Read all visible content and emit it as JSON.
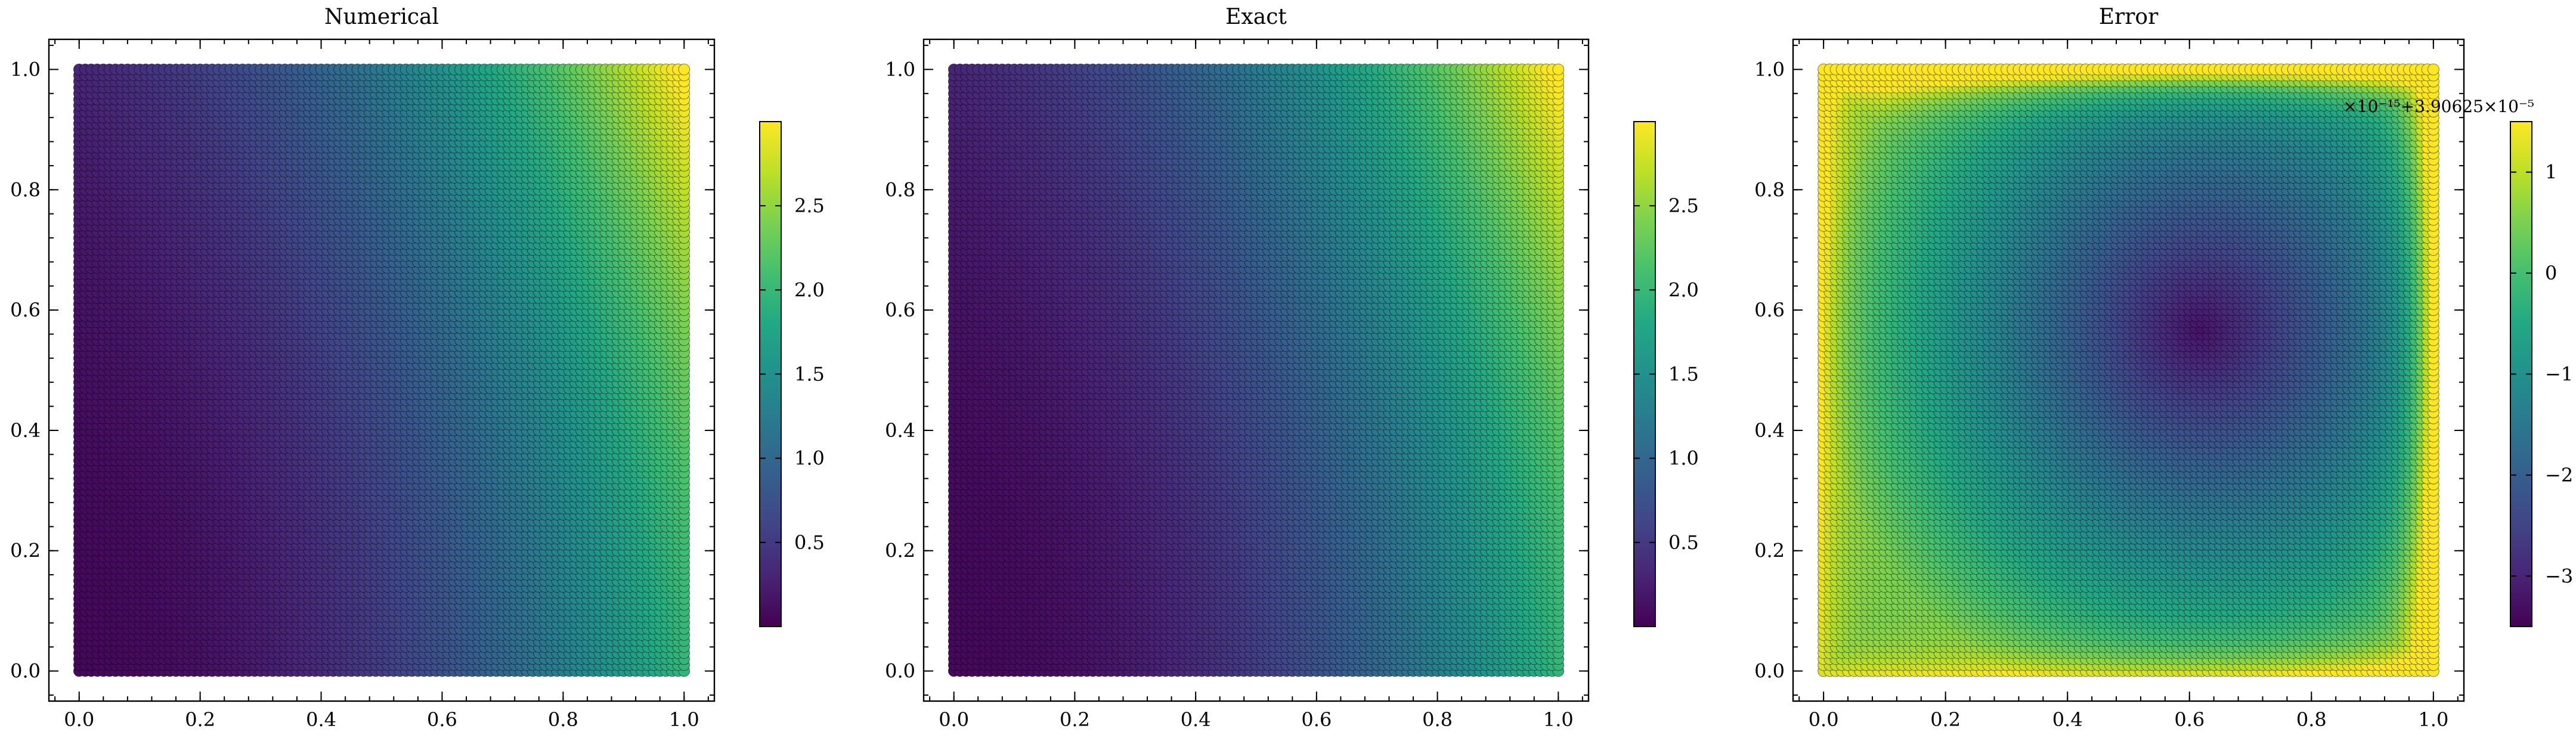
{
  "chart_data": [
    {
      "type": "scatter",
      "title": "Numerical",
      "xlim": [
        -0.05,
        1.05
      ],
      "ylim": [
        -0.05,
        1.05
      ],
      "x_ticks": [
        "0.0",
        "0.2",
        "0.4",
        "0.6",
        "0.8",
        "1.0"
      ],
      "y_ticks": [
        "0.0",
        "0.2",
        "0.4",
        "0.6",
        "0.8",
        "1.0"
      ],
      "grid_points": 101,
      "x_range": [
        0.0,
        1.0
      ],
      "y_range": [
        0.0,
        1.0
      ],
      "colormap": "viridis",
      "colorbar": {
        "vmin": 0.0,
        "vmax": 3.0,
        "ticks": [
          "0.5",
          "1.0",
          "1.5",
          "2.0",
          "2.5"
        ]
      },
      "field": "numerical"
    },
    {
      "type": "scatter",
      "title": "Exact",
      "xlim": [
        -0.05,
        1.05
      ],
      "ylim": [
        -0.05,
        1.05
      ],
      "x_ticks": [
        "0.0",
        "0.2",
        "0.4",
        "0.6",
        "0.8",
        "1.0"
      ],
      "y_ticks": [
        "0.0",
        "0.2",
        "0.4",
        "0.6",
        "0.8",
        "1.0"
      ],
      "grid_points": 101,
      "x_range": [
        0.0,
        1.0
      ],
      "y_range": [
        0.0,
        1.0
      ],
      "colormap": "viridis",
      "colorbar": {
        "vmin": 0.0,
        "vmax": 3.0,
        "ticks": [
          "0.5",
          "1.0",
          "1.5",
          "2.0",
          "2.5"
        ]
      },
      "field": "exact"
    },
    {
      "type": "scatter",
      "title": "Error",
      "xlim": [
        -0.05,
        1.05
      ],
      "ylim": [
        -0.05,
        1.05
      ],
      "x_ticks": [
        "0.0",
        "0.2",
        "0.4",
        "0.6",
        "0.8",
        "1.0"
      ],
      "y_ticks": [
        "0.0",
        "0.2",
        "0.4",
        "0.6",
        "0.8",
        "1.0"
      ],
      "grid_points": 101,
      "x_range": [
        0.0,
        1.0
      ],
      "y_range": [
        0.0,
        1.0
      ],
      "colormap": "viridis",
      "colorbar": {
        "vmin": -3.5,
        "vmax": 1.5,
        "ticks": [
          "1",
          "0",
          "−1",
          "−2",
          "−3"
        ],
        "offset_label": "×10⁻¹⁵+3.90625×10⁻⁵"
      },
      "field": "error"
    }
  ]
}
